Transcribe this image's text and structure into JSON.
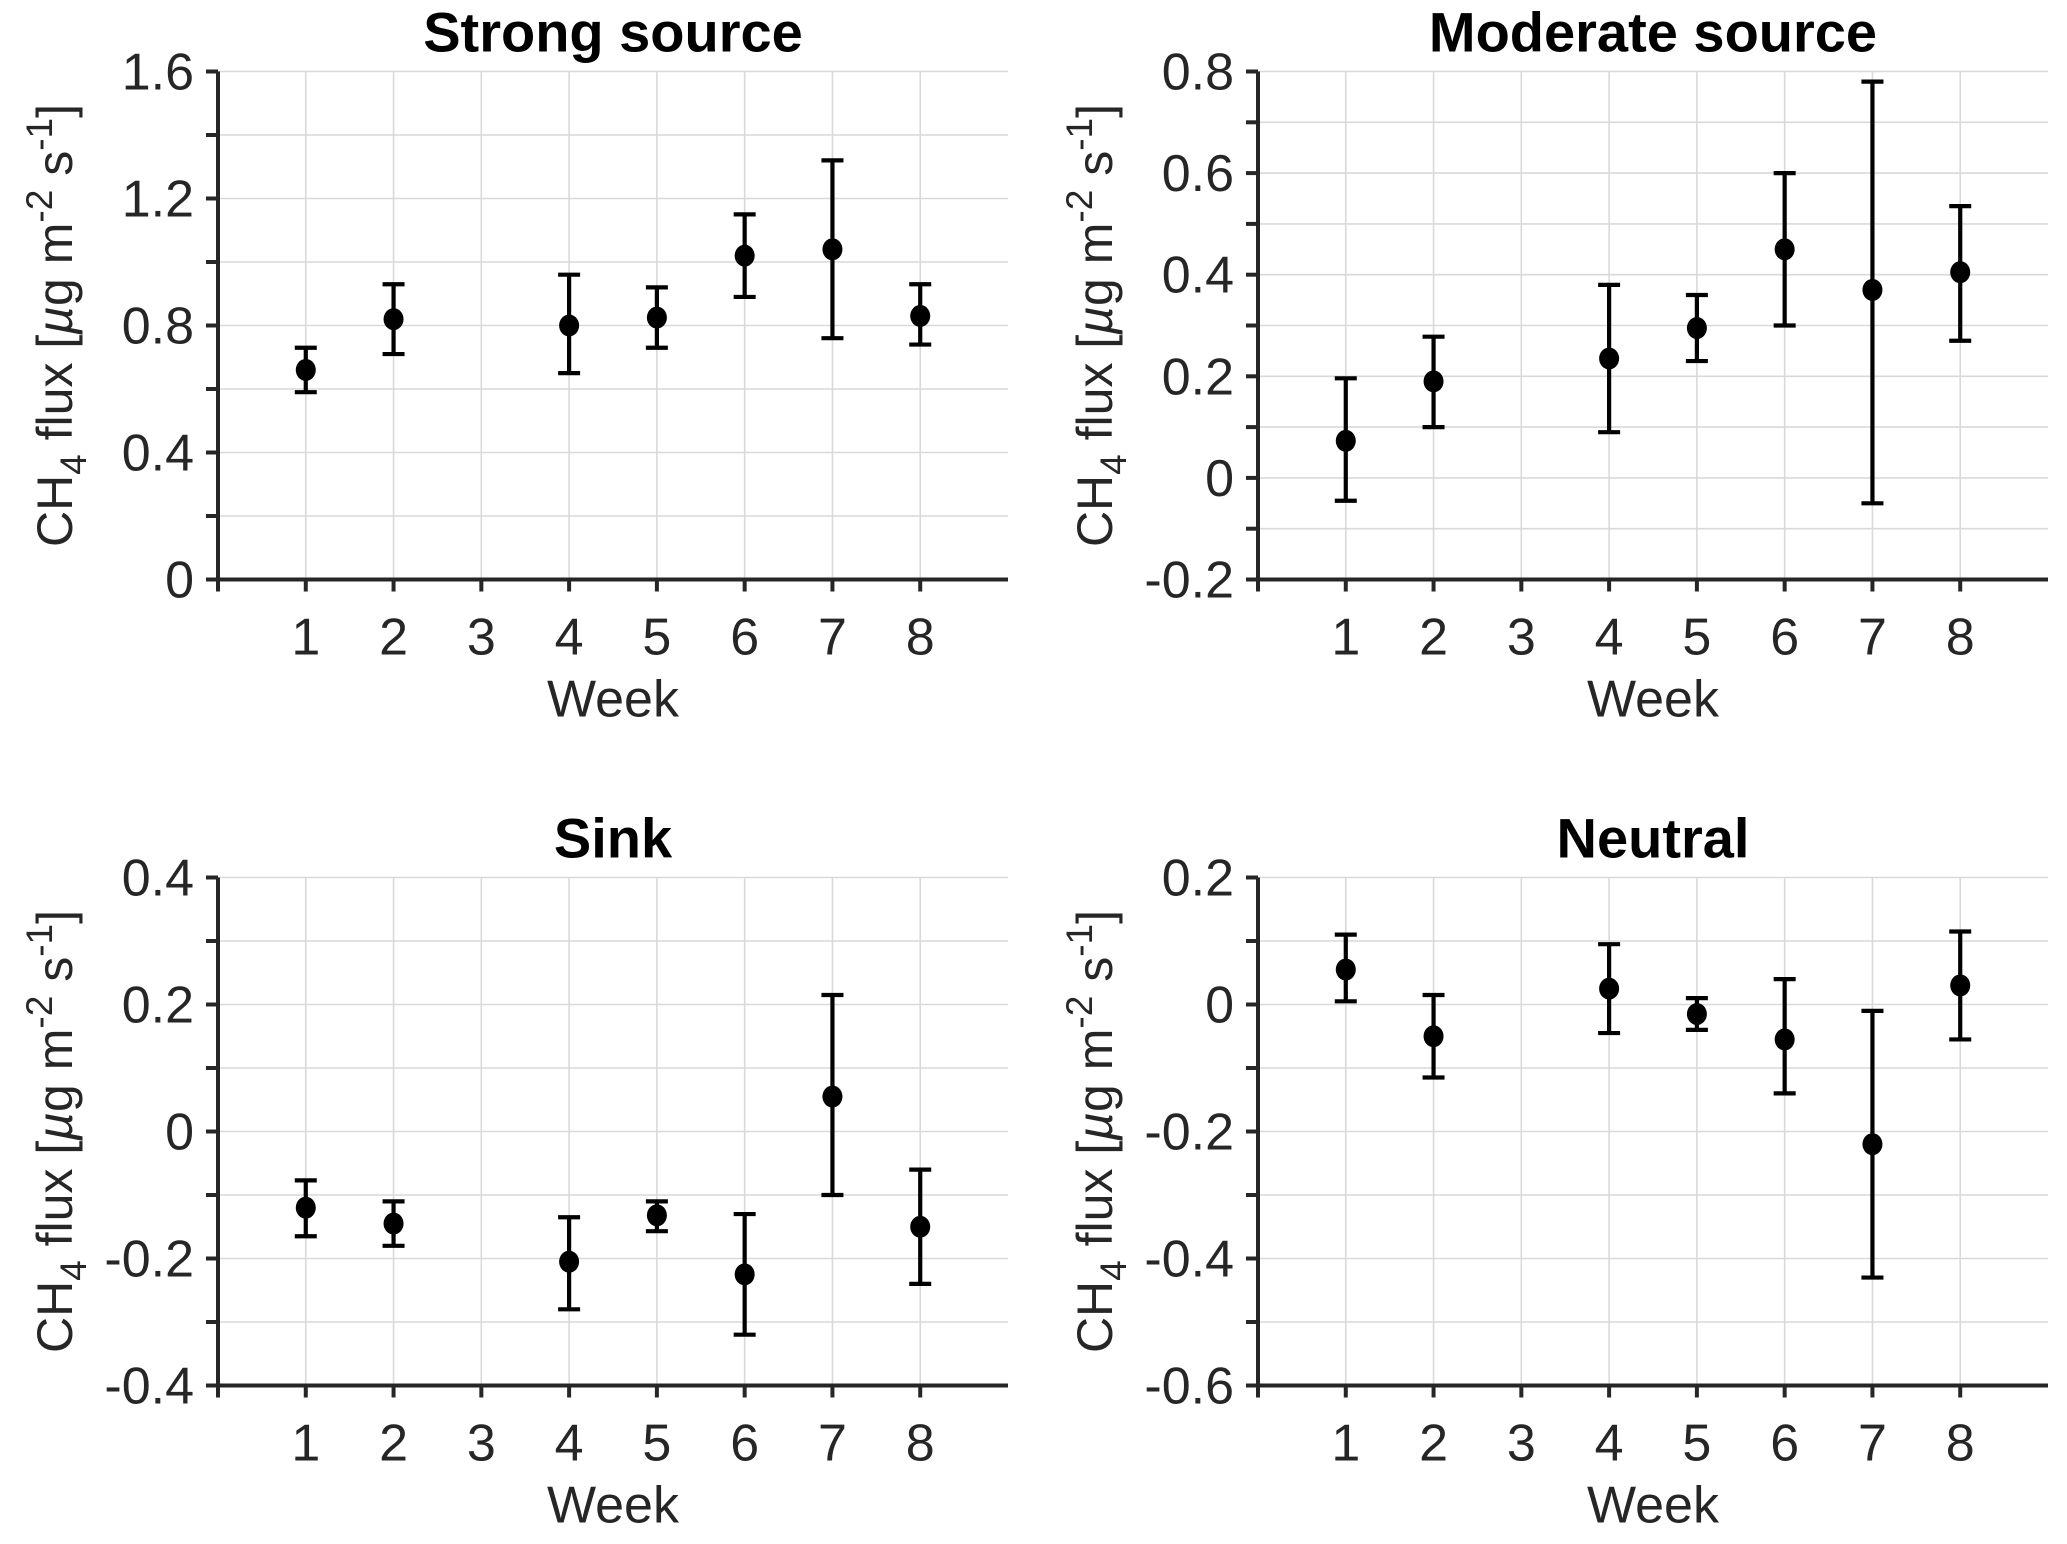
{
  "figure": {
    "background": "#ffffff",
    "panel_count": 4
  },
  "styles": {
    "axis_color": "#262626",
    "grid_color": "#d9d9d9",
    "marker_color": "#000000",
    "errorbar_color": "#000000",
    "title_color": "#000000",
    "tick_label_color": "#262626"
  },
  "xlabel": "Week",
  "ylabel_text": "CH4 flux [µg m-2 s-1]",
  "ylabel_rich": [
    {
      "t": "CH"
    },
    {
      "t": "4",
      "style": "sub"
    },
    {
      "t": " flux ["
    },
    {
      "t": "µ",
      "style": "italic"
    },
    {
      "t": "g m"
    },
    {
      "t": "-2",
      "style": "sup"
    },
    {
      "t": " s"
    },
    {
      "t": "-1",
      "style": "sup"
    },
    {
      "t": "]"
    }
  ],
  "chart_data": [
    {
      "type": "scatter",
      "title": "Strong source",
      "xlabel": "Week",
      "ylabel": "CH4 flux [µg m-2 s-1]",
      "x": [
        1,
        2,
        4,
        5,
        6,
        7,
        8
      ],
      "y": [
        0.66,
        0.82,
        0.8,
        0.825,
        1.02,
        1.04,
        0.83
      ],
      "err_low": [
        0.59,
        0.71,
        0.65,
        0.73,
        0.89,
        0.76,
        0.74
      ],
      "err_high": [
        0.73,
        0.93,
        0.96,
        0.92,
        1.15,
        1.32,
        0.93
      ],
      "xlim": [
        0,
        9
      ],
      "ylim": [
        0,
        1.6
      ],
      "xticks": [
        1,
        2,
        3,
        4,
        5,
        6,
        7,
        8
      ],
      "xtick_labels": [
        "1",
        "2",
        "3",
        "4",
        "5",
        "6",
        "7",
        "8"
      ],
      "yticks": [
        0,
        0.2,
        0.4,
        0.6,
        0.8,
        1.0,
        1.2,
        1.4,
        1.6
      ],
      "ytick_labels": [
        "0",
        "",
        "0.4",
        "",
        "0.8",
        "",
        "1.2",
        "",
        "1.6"
      ],
      "grid": true,
      "legend": false,
      "missing_weeks": [
        3
      ]
    },
    {
      "type": "scatter",
      "title": "Moderate source",
      "xlabel": "Week",
      "ylabel": "CH4 flux [µg m-2 s-1]",
      "x": [
        1,
        2,
        4,
        5,
        6,
        7,
        8
      ],
      "y": [
        0.073,
        0.19,
        0.235,
        0.295,
        0.45,
        0.37,
        0.405
      ],
      "err_low": [
        -0.045,
        0.1,
        0.09,
        0.23,
        0.3,
        -0.05,
        0.27
      ],
      "err_high": [
        0.196,
        0.278,
        0.38,
        0.36,
        0.6,
        0.78,
        0.535
      ],
      "xlim": [
        0,
        9
      ],
      "ylim": [
        -0.2,
        0.8
      ],
      "xticks": [
        1,
        2,
        3,
        4,
        5,
        6,
        7,
        8
      ],
      "xtick_labels": [
        "1",
        "2",
        "3",
        "4",
        "5",
        "6",
        "7",
        "8"
      ],
      "yticks": [
        -0.2,
        -0.1,
        0,
        0.1,
        0.2,
        0.3,
        0.4,
        0.5,
        0.6,
        0.7,
        0.8
      ],
      "ytick_labels": [
        "-0.2",
        "",
        "0",
        "",
        "0.2",
        "",
        "0.4",
        "",
        "0.6",
        "",
        "0.8"
      ],
      "grid": true,
      "legend": false,
      "missing_weeks": [
        3
      ]
    },
    {
      "type": "scatter",
      "title": "Sink",
      "xlabel": "Week",
      "ylabel": "CH4 flux [µg m-2 s-1]",
      "x": [
        1,
        2,
        4,
        5,
        6,
        7,
        8
      ],
      "y": [
        -0.12,
        -0.145,
        -0.205,
        -0.132,
        -0.225,
        0.055,
        -0.15
      ],
      "err_low": [
        -0.165,
        -0.18,
        -0.28,
        -0.157,
        -0.32,
        -0.1,
        -0.24
      ],
      "err_high": [
        -0.077,
        -0.11,
        -0.135,
        -0.11,
        -0.13,
        0.215,
        -0.06
      ],
      "xlim": [
        0,
        9
      ],
      "ylim": [
        -0.4,
        0.4
      ],
      "xticks": [
        1,
        2,
        3,
        4,
        5,
        6,
        7,
        8
      ],
      "xtick_labels": [
        "1",
        "2",
        "3",
        "4",
        "5",
        "6",
        "7",
        "8"
      ],
      "yticks": [
        -0.4,
        -0.3,
        -0.2,
        -0.1,
        0,
        0.1,
        0.2,
        0.3,
        0.4
      ],
      "ytick_labels": [
        "-0.4",
        "",
        "-0.2",
        "",
        "0",
        "",
        "0.2",
        "",
        "0.4"
      ],
      "grid": true,
      "legend": false,
      "missing_weeks": [
        3
      ]
    },
    {
      "type": "scatter",
      "title": "Neutral",
      "xlabel": "Week",
      "ylabel": "CH4 flux [µg m-2 s-1]",
      "x": [
        1,
        2,
        4,
        5,
        6,
        7,
        8
      ],
      "y": [
        0.055,
        -0.05,
        0.025,
        -0.015,
        -0.055,
        -0.22,
        0.03
      ],
      "err_low": [
        0.005,
        -0.115,
        -0.045,
        -0.04,
        -0.14,
        -0.43,
        -0.055
      ],
      "err_high": [
        0.11,
        0.015,
        0.095,
        0.01,
        0.04,
        -0.01,
        0.115
      ],
      "xlim": [
        0,
        9
      ],
      "ylim": [
        -0.6,
        0.2
      ],
      "xticks": [
        1,
        2,
        3,
        4,
        5,
        6,
        7,
        8
      ],
      "xtick_labels": [
        "1",
        "2",
        "3",
        "4",
        "5",
        "6",
        "7",
        "8"
      ],
      "yticks": [
        -0.6,
        -0.5,
        -0.4,
        -0.3,
        -0.2,
        -0.1,
        0,
        0.1,
        0.2
      ],
      "ytick_labels": [
        "-0.6",
        "",
        "-0.4",
        "",
        "-0.2",
        "",
        "0",
        "",
        "0.2"
      ],
      "grid": true,
      "legend": false,
      "missing_weeks": [
        3
      ]
    }
  ]
}
